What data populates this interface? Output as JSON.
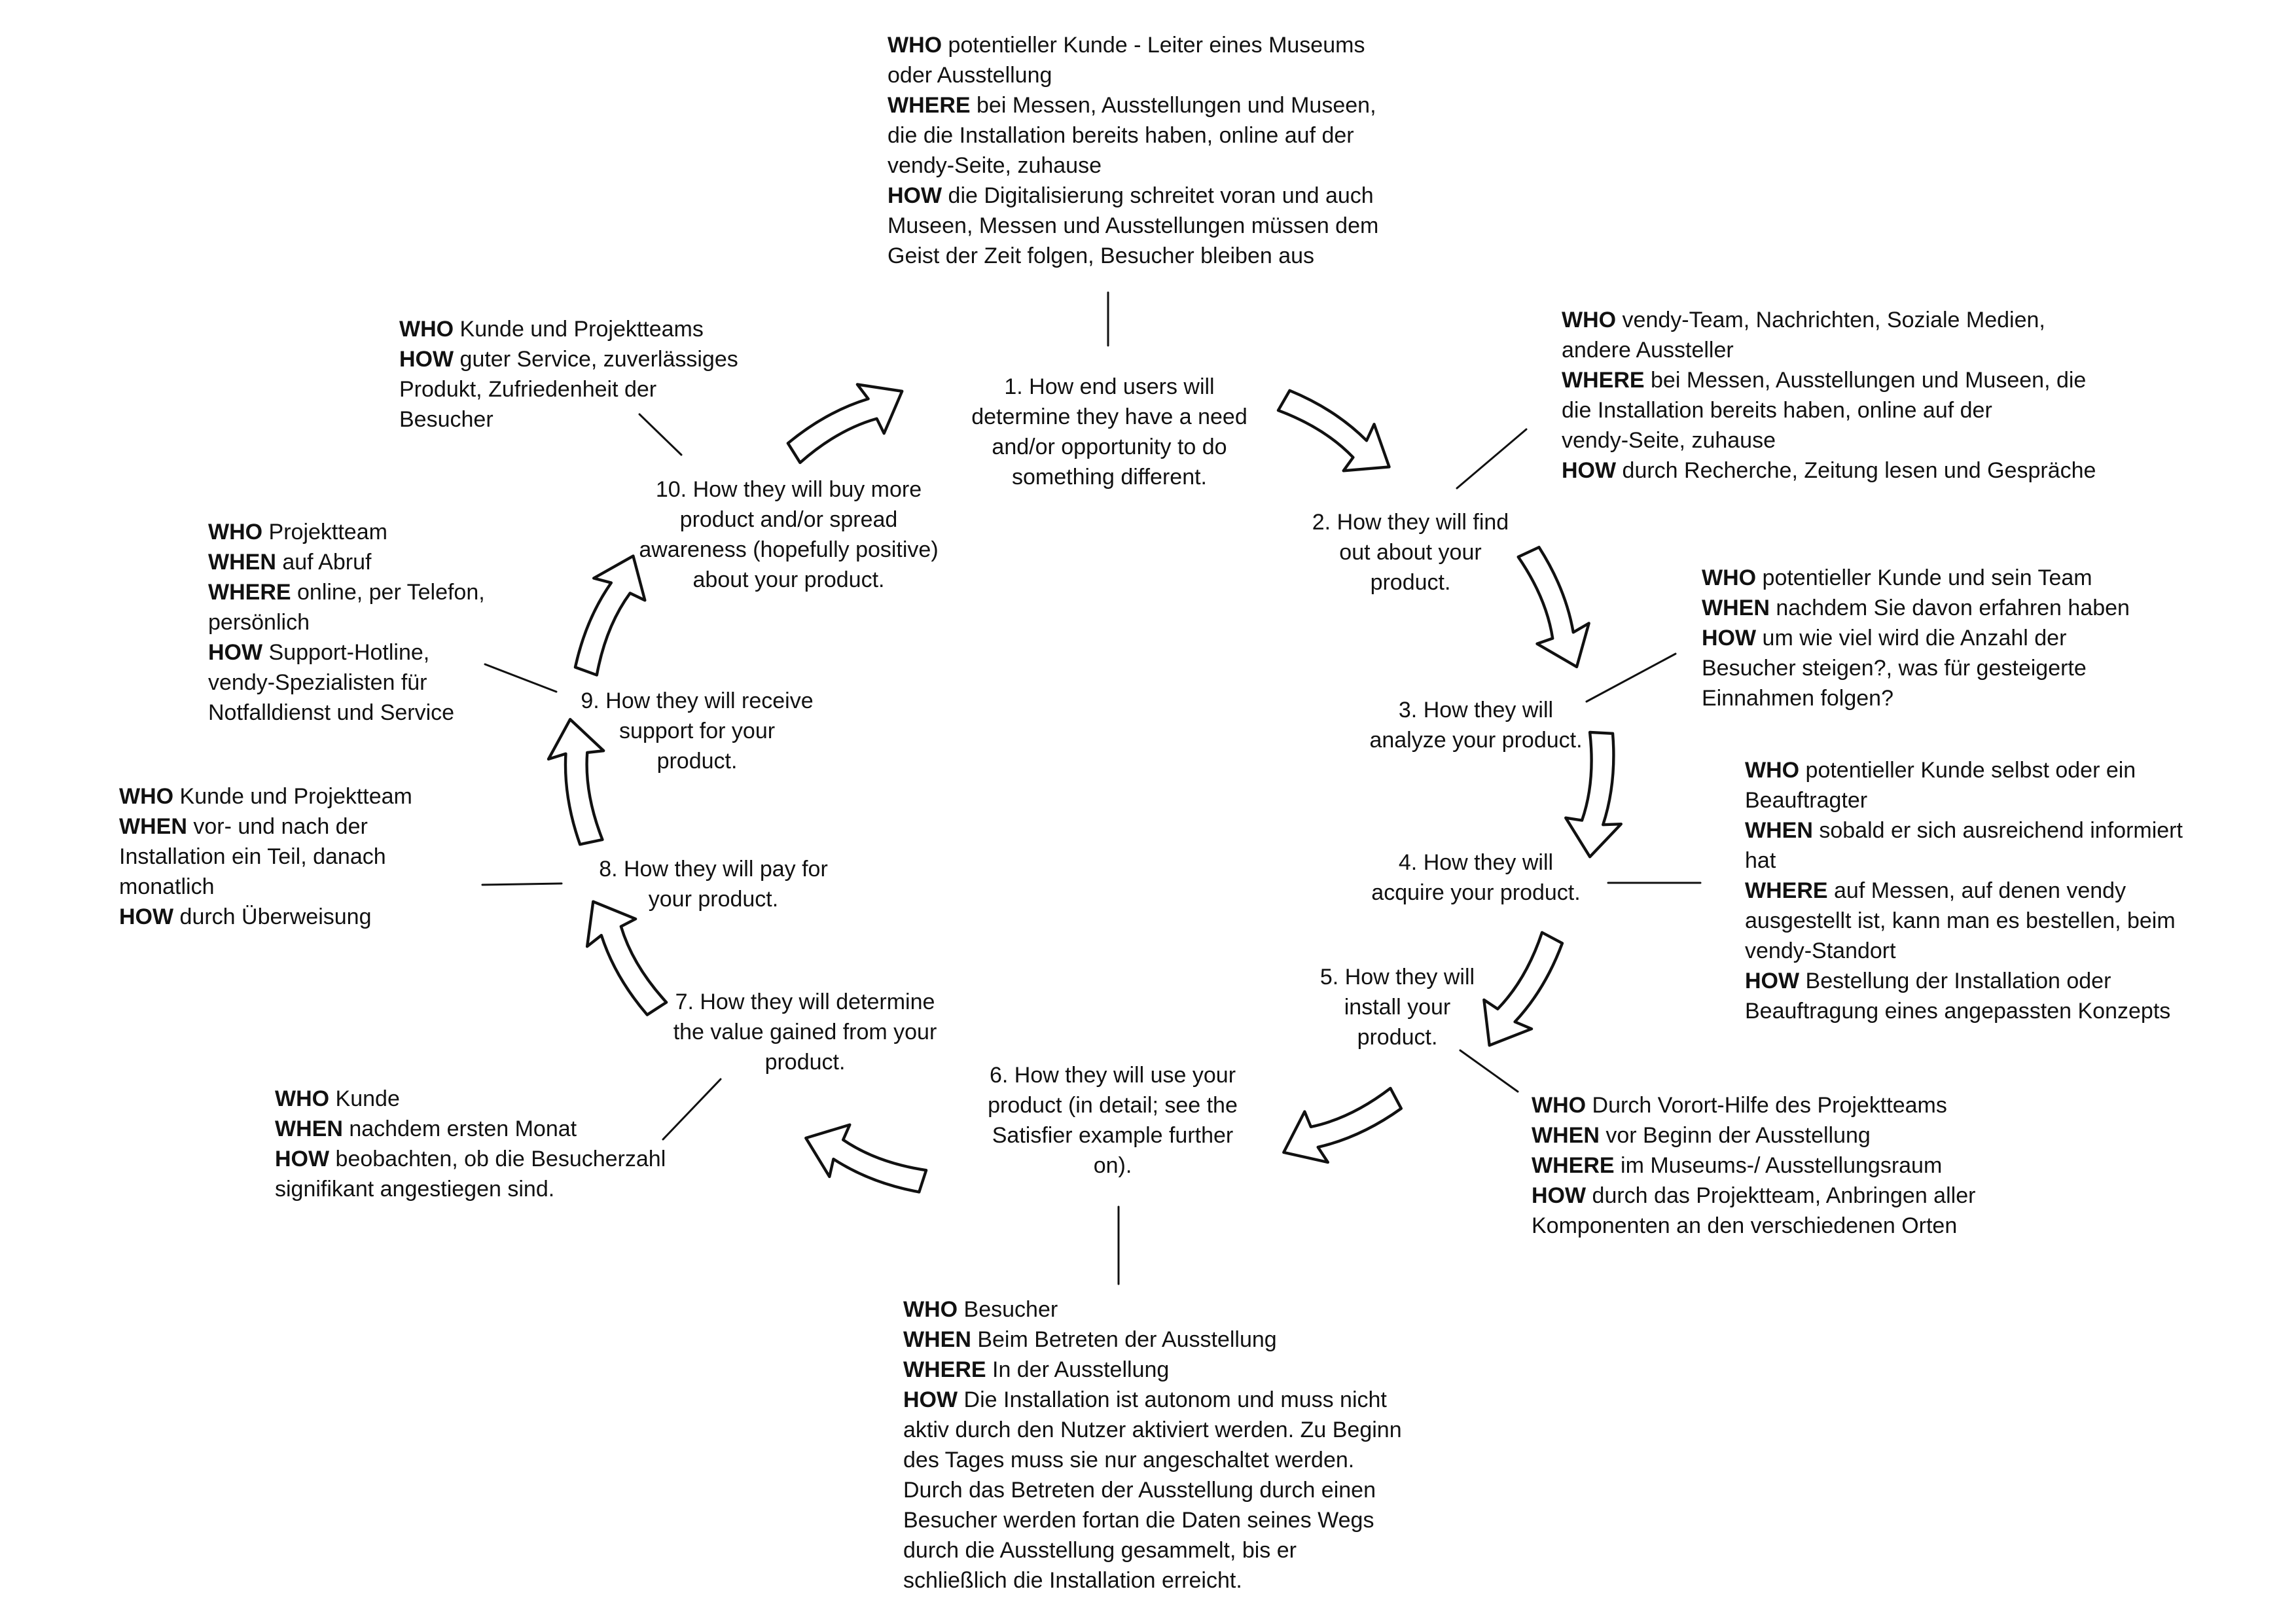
{
  "steps": [
    {
      "id": 1,
      "text": "1. How end users will\ndetermine they have a need\nand/or opportunity to do\nsomething different."
    },
    {
      "id": 2,
      "text": "2. How they will find\nout about your\nproduct."
    },
    {
      "id": 3,
      "text": "3. How they will\nanalyze your product."
    },
    {
      "id": 4,
      "text": "4. How they will\nacquire your product."
    },
    {
      "id": 5,
      "text": "5. How they will\ninstall your\nproduct."
    },
    {
      "id": 6,
      "text": "6. How they will use your\nproduct (in detail; see the\nSatisfier example further\non)."
    },
    {
      "id": 7,
      "text": "7. How they will determine\nthe value gained from your\nproduct."
    },
    {
      "id": 8,
      "text": "8. How they will pay for\nyour product."
    },
    {
      "id": 9,
      "text": "9. How they will receive\nsupport for your\nproduct."
    },
    {
      "id": 10,
      "text": "10. How they will buy more\nproduct and/or spread\nawareness (hopefully positive)\nabout your product."
    }
  ],
  "notes": {
    "n1": [
      {
        "key": "WHO",
        "text": " potentieller Kunde - Leiter eines Museums\noder Ausstellung"
      },
      {
        "key": "WHERE",
        "text": "  bei Messen, Ausstellungen und Museen,\ndie die Installation bereits haben, online auf der\nvendy-Seite, zuhause"
      },
      {
        "key": "HOW",
        "text": " die Digitalisierung schreitet voran und auch\nMuseen, Messen und Ausstellungen müssen dem\nGeist der Zeit folgen, Besucher bleiben aus"
      }
    ],
    "n2": [
      {
        "key": "WHO",
        "text": " vendy-Team, Nachrichten, Soziale Medien,\nandere Aussteller"
      },
      {
        "key": "WHERE",
        "text": "  bei Messen, Ausstellungen und Museen, die\ndie Installation bereits haben, online auf der\nvendy-Seite, zuhause"
      },
      {
        "key": "HOW",
        "text": " durch Recherche, Zeitung lesen und Gespräche"
      }
    ],
    "n3": [
      {
        "key": "WHO",
        "text": " potentieller Kunde und sein Team"
      },
      {
        "key": "WHEN",
        "text": " nachdem Sie davon erfahren haben"
      },
      {
        "key": "HOW",
        "text": "  um wie viel wird die Anzahl der\nBesucher steigen?, was für gesteigerte\nEinnahmen folgen?"
      }
    ],
    "n4": [
      {
        "key": "WHO",
        "text": " potentieller Kunde selbst oder ein\nBeauftragter"
      },
      {
        "key": "WHEN",
        "text": " sobald er sich ausreichend informiert\nhat"
      },
      {
        "key": "WHERE",
        "text": " auf Messen, auf denen vendy\nausgestellt ist, kann man es bestellen, beim\nvendy-Standort"
      },
      {
        "key": "HOW",
        "text": "  Bestellung der Installation oder\nBeauftragung eines angepassten Konzepts"
      }
    ],
    "n5": [
      {
        "key": "WHO",
        "text": " Durch Vorort-Hilfe des Projektteams"
      },
      {
        "key": "WHEN",
        "text": " vor Beginn der Ausstellung"
      },
      {
        "key": "WHERE",
        "text": " im Museums-/ Ausstellungsraum"
      },
      {
        "key": "HOW",
        "text": "  durch das Projektteam, Anbringen aller\nKomponenten an den verschiedenen Orten"
      }
    ],
    "n6": [
      {
        "key": "WHO",
        "text": " Besucher"
      },
      {
        "key": "WHEN",
        "text": " Beim Betreten der Ausstellung"
      },
      {
        "key": "WHERE",
        "text": " In der Ausstellung"
      },
      {
        "key": "HOW",
        "text": "  Die Installation ist autonom und muss nicht\naktiv durch den Nutzer aktiviert werden. Zu Beginn\ndes Tages muss sie nur angeschaltet werden.\nDurch das Betreten der Ausstellung durch einen\nBesucher werden fortan die Daten seines Wegs\ndurch die Ausstellung gesammelt, bis er\nschließlich die Installation erreicht."
      }
    ],
    "n7": [
      {
        "key": "WHO",
        "text": "  Kunde"
      },
      {
        "key": "WHEN",
        "text": " nachdem ersten Monat"
      },
      {
        "key": "HOW",
        "text": "  beobachten, ob die Besucherzahl\nsignifikant angestiegen sind."
      }
    ],
    "n8": [
      {
        "key": "WHO",
        "text": "  Kunde und Projektteam"
      },
      {
        "key": "WHEN",
        "text": " vor- und nach der\nInstallation ein Teil, danach\nmonatlich"
      },
      {
        "key": "HOW",
        "text": "  durch Überweisung"
      }
    ],
    "n9": [
      {
        "key": "WHO",
        "text": " Projektteam"
      },
      {
        "key": "WHEN",
        "text": " auf Abruf"
      },
      {
        "key": "WHERE",
        "text": " online, per Telefon,\npersönlich"
      },
      {
        "key": "HOW",
        "text": "  Support-Hotline,\nvendy-Spezialisten für\nNotfalldienst und Service"
      }
    ],
    "n10": [
      {
        "key": "WHO",
        "text": " Kunde und Projektteams"
      },
      {
        "key": "HOW",
        "text": " guter Service, zuverlässiges\nProdukt, Zufriedenheit der\nBesucher"
      }
    ]
  },
  "colors": {
    "ink": "#111111",
    "background": "#ffffff"
  }
}
